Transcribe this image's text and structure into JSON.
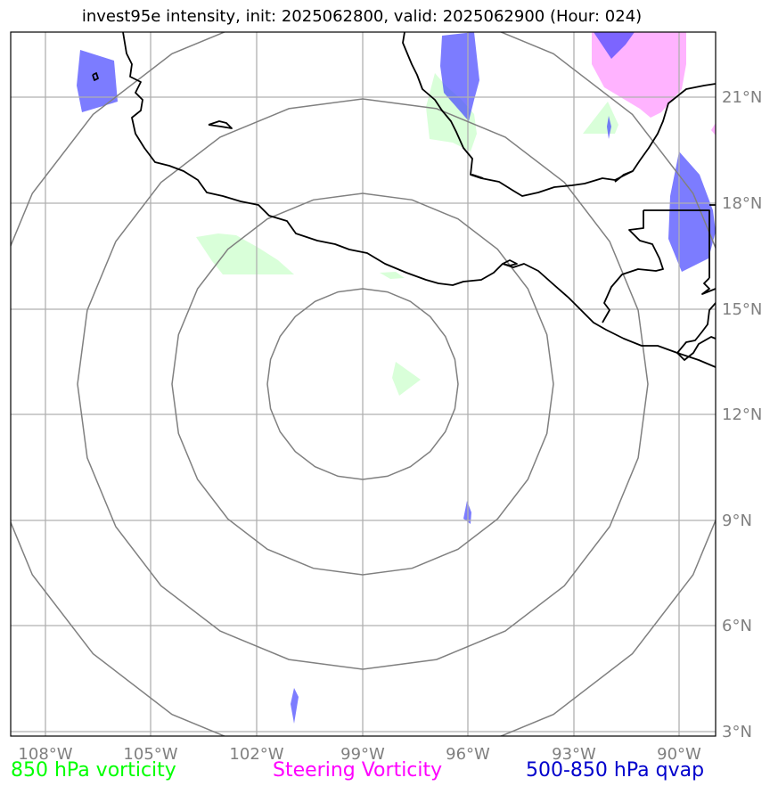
{
  "title": "invest95e intensity, init: 2025062800, valid: 2025062900 (Hour: 024)",
  "lon_labels": [
    "108°W",
    "105°W",
    "102°W",
    "99°W",
    "96°W",
    "93°W",
    "90°W"
  ],
  "lat_labels": [
    "21°N",
    "18°N",
    "15°N",
    "12°N",
    "9°N",
    "6°N",
    "3°N"
  ],
  "legend": {
    "vort850": "850 hPa vorticity",
    "steering": "Steering Vorticity",
    "qvap": "500-850 hPa qvap"
  },
  "colors": {
    "vort850": "#00ff00",
    "steering": "#ff00ff",
    "qvap": "#0000cc",
    "grid": "#b0b0b0",
    "range_rings": "#808080",
    "coastline": "#000000"
  }
}
